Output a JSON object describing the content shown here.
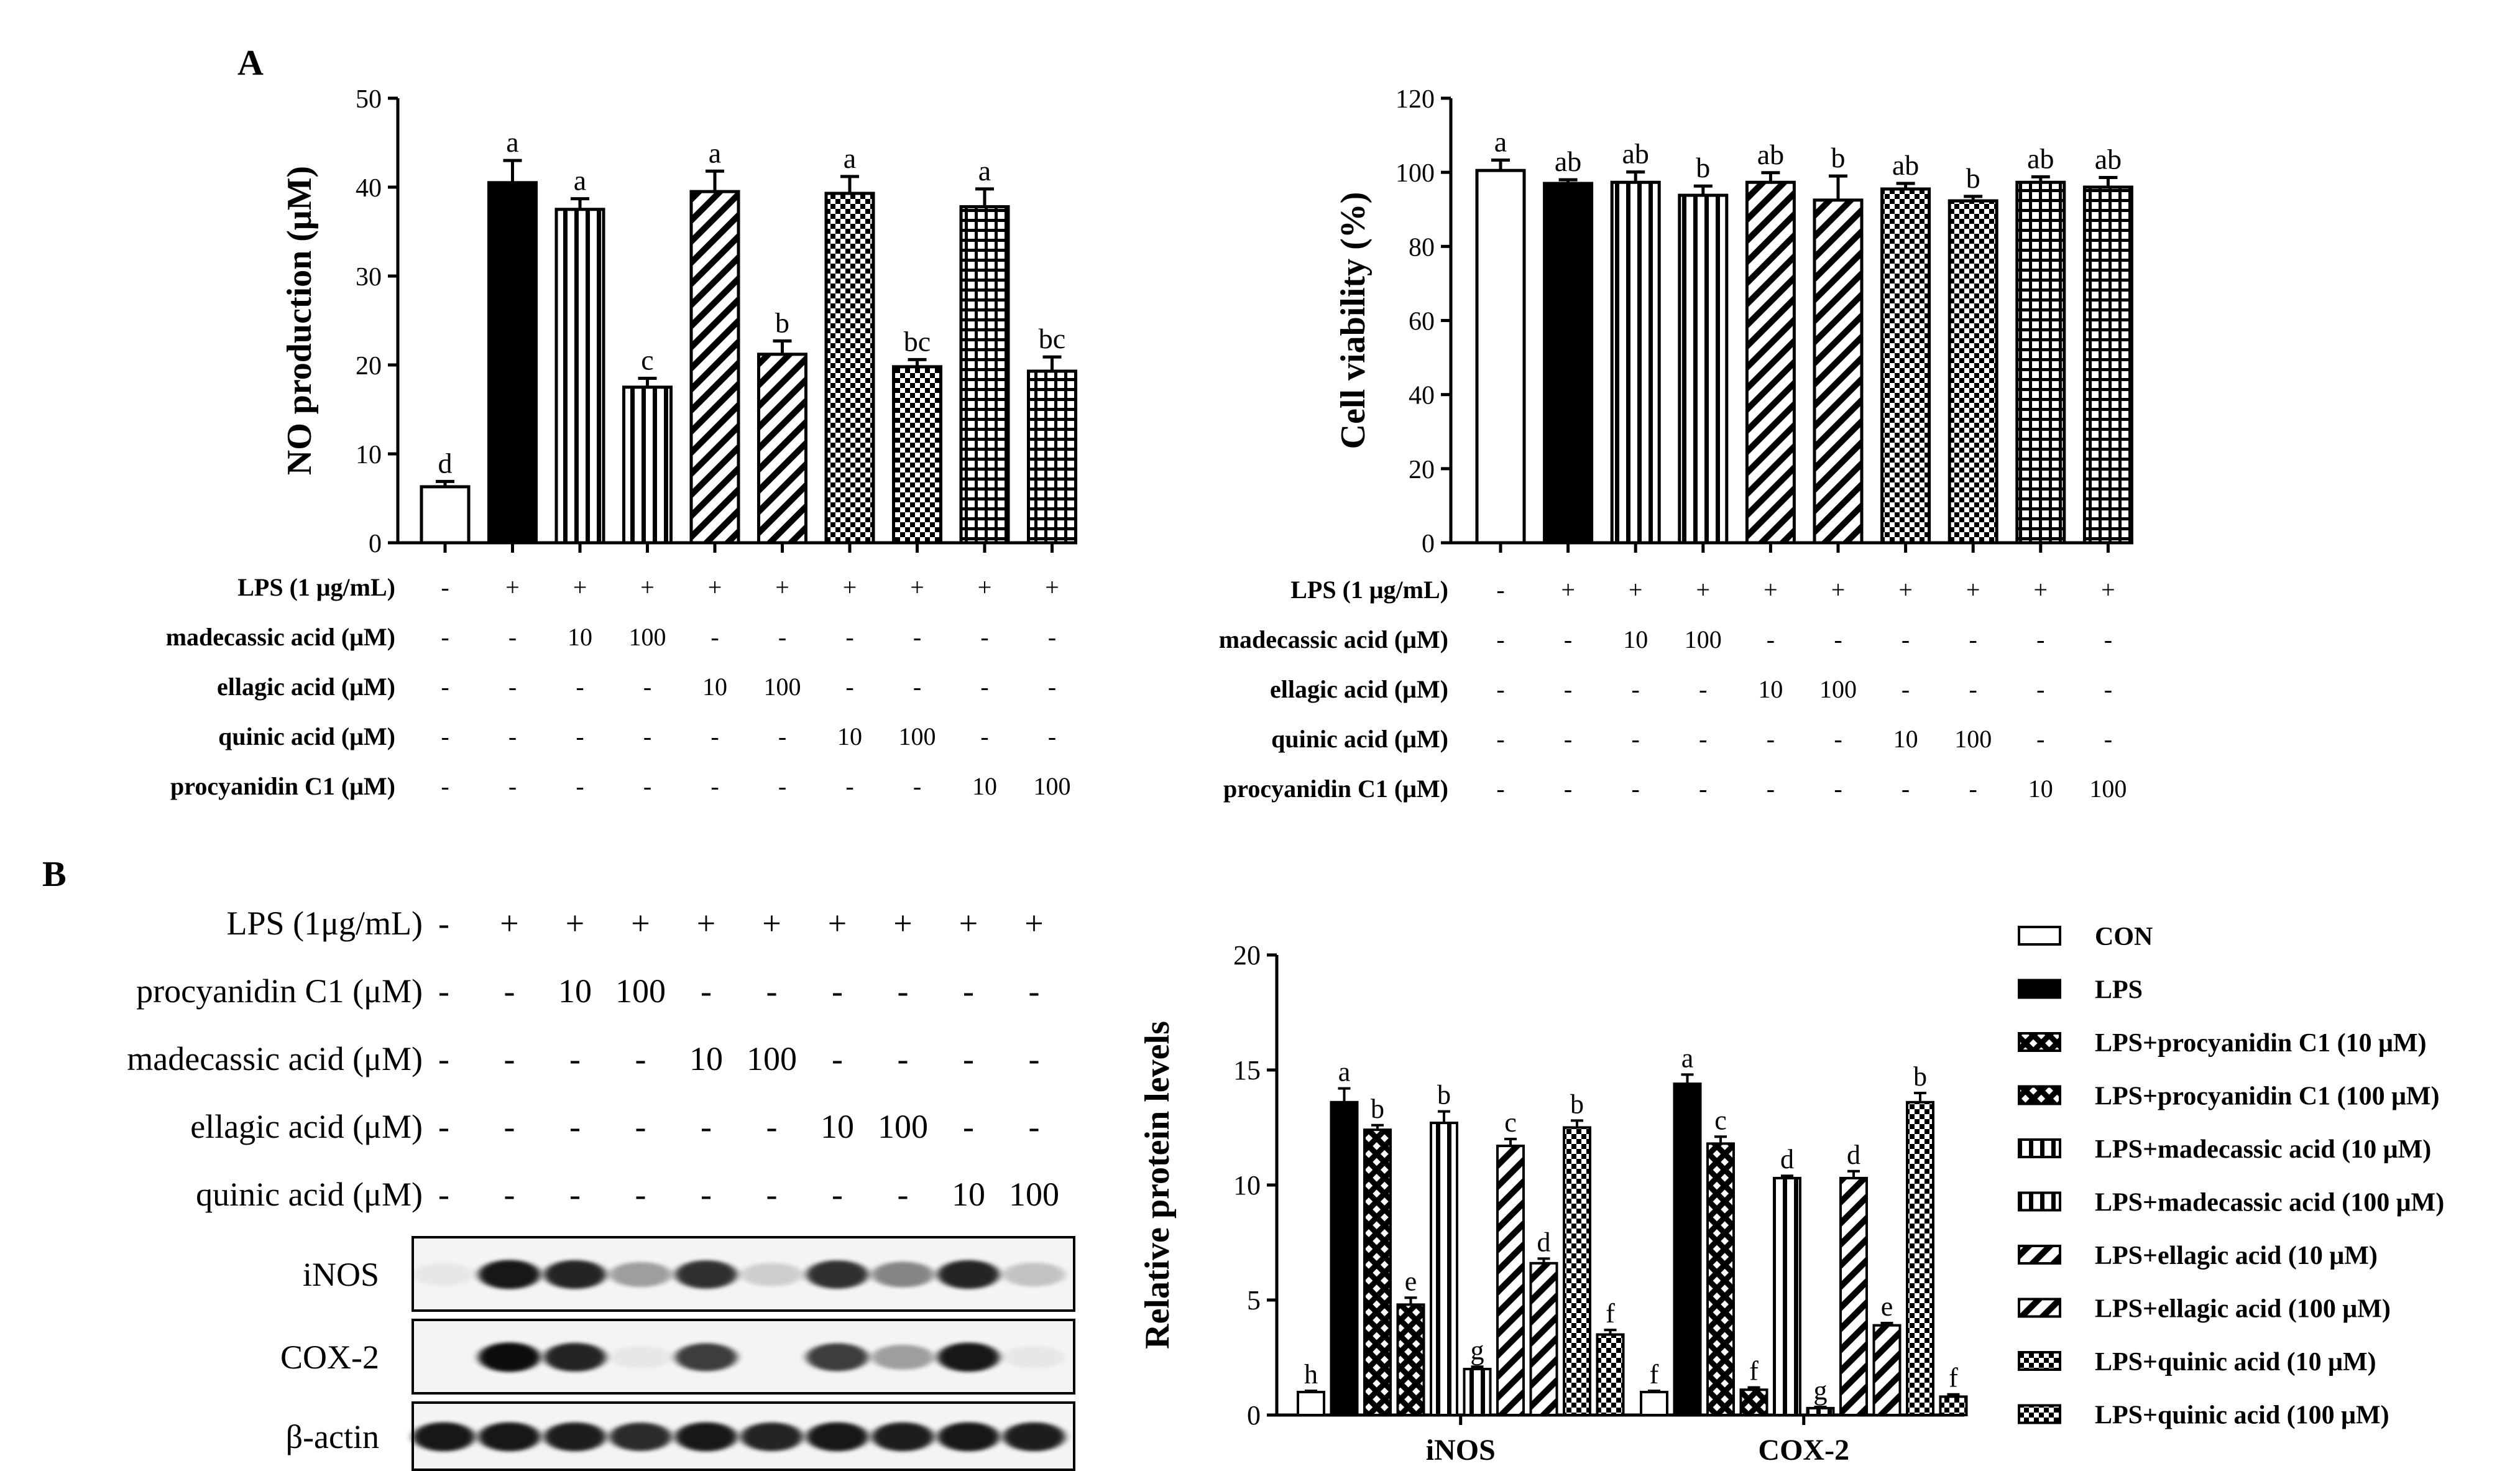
{
  "panel_labels": {
    "a": "A",
    "b": "B"
  },
  "colors": {
    "ink": "#000000",
    "background": "#ffffff"
  },
  "chart_data": [
    {
      "id": "no-production",
      "type": "bar",
      "ylabel": "NO production (μM)",
      "ylim": [
        0,
        50
      ],
      "yticks": [
        0,
        10,
        20,
        30,
        40,
        50
      ],
      "grid": false,
      "bars": [
        {
          "value": 6.3,
          "error": 0.6,
          "letter": "d",
          "pattern": "open"
        },
        {
          "value": 40.5,
          "error": 2.5,
          "letter": "a",
          "pattern": "solid"
        },
        {
          "value": 37.5,
          "error": 1.2,
          "letter": "a",
          "pattern": "vstripe"
        },
        {
          "value": 17.5,
          "error": 1.0,
          "letter": "c",
          "pattern": "vstripe"
        },
        {
          "value": 39.5,
          "error": 2.3,
          "letter": "a",
          "pattern": "diag"
        },
        {
          "value": 21.2,
          "error": 1.5,
          "letter": "b",
          "pattern": "diag"
        },
        {
          "value": 39.3,
          "error": 1.9,
          "letter": "a",
          "pattern": "check"
        },
        {
          "value": 19.8,
          "error": 0.8,
          "letter": "bc",
          "pattern": "check"
        },
        {
          "value": 37.8,
          "error": 2.0,
          "letter": "a",
          "pattern": "grid"
        },
        {
          "value": 19.3,
          "error": 1.6,
          "letter": "bc",
          "pattern": "grid"
        }
      ],
      "conditions": [
        {
          "label": "LPS (1 μg/mL)",
          "values": [
            "-",
            "+",
            "+",
            "+",
            "+",
            "+",
            "+",
            "+",
            "+",
            "+"
          ]
        },
        {
          "label": "madecassic acid (μM)",
          "values": [
            "-",
            "-",
            "10",
            "100",
            "-",
            "-",
            "-",
            "-",
            "-",
            "-"
          ]
        },
        {
          "label": "ellagic acid (μM)",
          "values": [
            "-",
            "-",
            "-",
            "-",
            "10",
            "100",
            "-",
            "-",
            "-",
            "-"
          ]
        },
        {
          "label": "quinic acid (μM)",
          "values": [
            "-",
            "-",
            "-",
            "-",
            "-",
            "-",
            "10",
            "100",
            "-",
            "-"
          ]
        },
        {
          "label": "procyanidin C1 (μM)",
          "values": [
            "-",
            "-",
            "-",
            "-",
            "-",
            "-",
            "-",
            "-",
            "10",
            "100"
          ]
        }
      ]
    },
    {
      "id": "cell-viability",
      "type": "bar",
      "ylabel": "Cell viability (%)",
      "ylim": [
        0,
        120
      ],
      "yticks": [
        0,
        20,
        40,
        60,
        80,
        100,
        120
      ],
      "grid": false,
      "bars": [
        {
          "value": 100.5,
          "error": 2.8,
          "letter": "a",
          "pattern": "open"
        },
        {
          "value": 97.0,
          "error": 1.0,
          "letter": "ab",
          "pattern": "solid"
        },
        {
          "value": 97.3,
          "error": 2.8,
          "letter": "ab",
          "pattern": "vstripe"
        },
        {
          "value": 93.8,
          "error": 2.5,
          "letter": "b",
          "pattern": "vstripe"
        },
        {
          "value": 97.3,
          "error": 2.6,
          "letter": "ab",
          "pattern": "diag"
        },
        {
          "value": 92.5,
          "error": 6.5,
          "letter": "b",
          "pattern": "diag"
        },
        {
          "value": 95.5,
          "error": 1.5,
          "letter": "ab",
          "pattern": "check"
        },
        {
          "value": 92.3,
          "error": 1.2,
          "letter": "b",
          "pattern": "check"
        },
        {
          "value": 97.3,
          "error": 1.5,
          "letter": "ab",
          "pattern": "grid"
        },
        {
          "value": 96.0,
          "error": 2.6,
          "letter": "ab",
          "pattern": "grid"
        }
      ],
      "conditions": [
        {
          "label": "LPS (1 μg/mL)",
          "values": [
            "-",
            "+",
            "+",
            "+",
            "+",
            "+",
            "+",
            "+",
            "+",
            "+"
          ]
        },
        {
          "label": "madecassic acid (μM)",
          "values": [
            "-",
            "-",
            "10",
            "100",
            "-",
            "-",
            "-",
            "-",
            "-",
            "-"
          ]
        },
        {
          "label": "ellagic acid (μM)",
          "values": [
            "-",
            "-",
            "-",
            "-",
            "10",
            "100",
            "-",
            "-",
            "-",
            "-"
          ]
        },
        {
          "label": "quinic acid (μM)",
          "values": [
            "-",
            "-",
            "-",
            "-",
            "-",
            "-",
            "10",
            "100",
            "-",
            "-"
          ]
        },
        {
          "label": "procyanidin C1 (μM)",
          "values": [
            "-",
            "-",
            "-",
            "-",
            "-",
            "-",
            "-",
            "-",
            "10",
            "100"
          ]
        }
      ]
    },
    {
      "id": "relative-protein",
      "type": "bar",
      "ylabel": "Relative protein levels",
      "ylim": [
        0,
        20
      ],
      "yticks": [
        0,
        5,
        10,
        15,
        20
      ],
      "grid": false,
      "categories": [
        "iNOS",
        "COX-2"
      ],
      "legend_position": "right",
      "series": [
        {
          "name": "CON",
          "pattern": "open",
          "values": [
            1.0,
            1.0
          ],
          "errors": [
            0.05,
            0.05
          ],
          "letters": [
            "h",
            "f"
          ]
        },
        {
          "name": "LPS",
          "pattern": "solid",
          "values": [
            13.6,
            14.4
          ],
          "errors": [
            0.6,
            0.4
          ],
          "letters": [
            "a",
            "a"
          ]
        },
        {
          "name": "LPS+procyanidin C1 (10 μM)",
          "pattern": "xhatch",
          "values": [
            12.4,
            11.8
          ],
          "errors": [
            0.2,
            0.3
          ],
          "letters": [
            "b",
            "c"
          ]
        },
        {
          "name": "LPS+procyanidin C1 (100 μM)",
          "pattern": "xhatch",
          "values": [
            4.8,
            1.1
          ],
          "errors": [
            0.3,
            0.1
          ],
          "letters": [
            "e",
            "f"
          ]
        },
        {
          "name": "LPS+madecassic acid (10 μM)",
          "pattern": "vstripe",
          "values": [
            12.7,
            10.3
          ],
          "errors": [
            0.5,
            0.1
          ],
          "letters": [
            "b",
            "d"
          ]
        },
        {
          "name": "LPS+madecassic acid (100 μM)",
          "pattern": "vstripe",
          "values": [
            2.0,
            0.3
          ],
          "errors": [
            0.1,
            0.05
          ],
          "letters": [
            "g",
            "g"
          ]
        },
        {
          "name": "LPS+ellagic acid (10 μM)",
          "pattern": "diag",
          "values": [
            11.7,
            10.3
          ],
          "errors": [
            0.3,
            0.3
          ],
          "letters": [
            "c",
            "d"
          ]
        },
        {
          "name": "LPS+ellagic acid (100 μM)",
          "pattern": "diag",
          "values": [
            6.6,
            3.9
          ],
          "errors": [
            0.2,
            0.1
          ],
          "letters": [
            "d",
            "e"
          ]
        },
        {
          "name": "LPS+quinic acid (10 μM)",
          "pattern": "check",
          "values": [
            12.5,
            13.6
          ],
          "errors": [
            0.3,
            0.4
          ],
          "letters": [
            "b",
            "b"
          ]
        },
        {
          "name": "LPS+quinic acid (100 μM)",
          "pattern": "check",
          "values": [
            3.5,
            0.8
          ],
          "errors": [
            0.2,
            0.1
          ],
          "letters": [
            "f",
            "f"
          ]
        }
      ]
    }
  ],
  "western_blot": {
    "conditions": [
      {
        "label": "LPS (1μg/mL)",
        "values": [
          "-",
          "+",
          "+",
          "+",
          "+",
          "+",
          "+",
          "+",
          "+",
          "+"
        ]
      },
      {
        "label": "procyanidin C1 (μM)",
        "values": [
          "-",
          "-",
          "10",
          "100",
          "-",
          "-",
          "-",
          "-",
          "-",
          "-"
        ]
      },
      {
        "label": "madecassic acid (μM)",
        "values": [
          "-",
          "-",
          "-",
          "-",
          "10",
          "100",
          "-",
          "-",
          "-",
          "-"
        ]
      },
      {
        "label": "ellagic acid (μM)",
        "values": [
          "-",
          "-",
          "-",
          "-",
          "-",
          "-",
          "10",
          "100",
          "-",
          "-"
        ]
      },
      {
        "label": "quinic acid (μM)",
        "values": [
          "-",
          "-",
          "-",
          "-",
          "-",
          "-",
          "-",
          "-",
          "10",
          "100"
        ]
      }
    ],
    "blots": [
      {
        "label": "iNOS",
        "intensities": [
          0.05,
          0.9,
          0.85,
          0.35,
          0.8,
          0.15,
          0.8,
          0.45,
          0.85,
          0.2
        ]
      },
      {
        "label": "COX-2",
        "intensities": [
          0.0,
          0.95,
          0.85,
          0.05,
          0.75,
          0.0,
          0.75,
          0.35,
          0.9,
          0.05
        ]
      },
      {
        "label": "β-actin",
        "intensities": [
          0.9,
          0.9,
          0.88,
          0.82,
          0.9,
          0.85,
          0.9,
          0.88,
          0.9,
          0.88
        ]
      }
    ]
  }
}
